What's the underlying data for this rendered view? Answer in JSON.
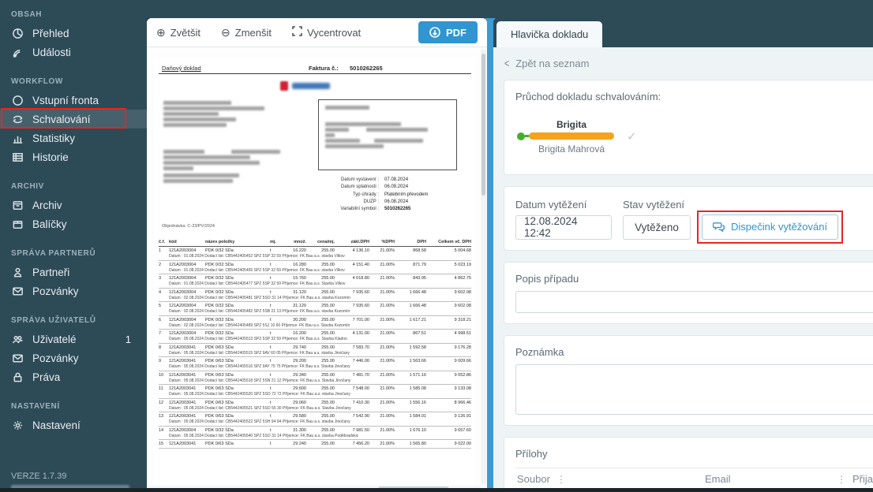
{
  "icons": {
    "check": "✓",
    "dots": "⋮",
    "back_chevron": "<",
    "zoom_in": "⊕",
    "zoom_out": "⊖"
  },
  "colors": {
    "sidebar_bg": "#2d4a57",
    "accent_blue": "#3095d1",
    "annotation_red": "#e8251f",
    "step_orange": "#f6a21d",
    "step_green": "#43b02a",
    "splitter_blue": "#3f9ad2"
  },
  "sidebar": {
    "version": "VERZE 1.7.39",
    "sections": [
      {
        "label": "OBSAH",
        "items": [
          {
            "label": "Přehled",
            "icon": "pie-chart"
          },
          {
            "label": "Události",
            "icon": "broadcast"
          }
        ]
      },
      {
        "label": "WORKFLOW",
        "items": [
          {
            "label": "Vstupní fronta",
            "icon": "circle"
          },
          {
            "label": "Schvalování",
            "icon": "approval",
            "selected": true
          },
          {
            "label": "Statistiky",
            "icon": "bar-chart"
          },
          {
            "label": "Historie",
            "icon": "table"
          }
        ]
      },
      {
        "label": "ARCHIV",
        "items": [
          {
            "label": "Archiv",
            "icon": "archive"
          },
          {
            "label": "Balíčky",
            "icon": "package"
          }
        ]
      },
      {
        "label": "SPRÁVA PARTNERŮ",
        "items": [
          {
            "label": "Partneři",
            "icon": "person"
          },
          {
            "label": "Pozvánky",
            "icon": "mail"
          }
        ]
      },
      {
        "label": "SPRÁVA UŽIVATELŮ",
        "items": [
          {
            "label": "Uživatelé",
            "icon": "users",
            "badge": "1"
          },
          {
            "label": "Pozvánky",
            "icon": "mail"
          },
          {
            "label": "Práva",
            "icon": "lock"
          }
        ]
      },
      {
        "label": "NASTAVENÍ",
        "items": [
          {
            "label": "Nastavení",
            "icon": "gear"
          }
        ]
      }
    ]
  },
  "viewer": {
    "toolbar": {
      "zoom_in": "Zvětšit",
      "zoom_out": "Zmenšit",
      "center": "Vycentrovat",
      "pdf": "PDF"
    }
  },
  "document": {
    "title": "Daňový doklad",
    "invoice_label": "Faktura č.:",
    "invoice_number": "5010262265",
    "order_line": "Objednávka: C-23/PV/2024",
    "meta": [
      {
        "label": "Datum vystavení :",
        "value": "07.08.2024"
      },
      {
        "label": "Datum splatnosti :",
        "value": "06.09.2024"
      },
      {
        "label": "Typ úhrady :",
        "value": "Platebním převodem"
      },
      {
        "label": "DUZP :",
        "value": "06.08.2024"
      },
      {
        "label": "Variabilní symbol :",
        "value": "5010262265"
      }
    ],
    "table": {
      "headers": [
        "č.ř.",
        "kód",
        "název položky",
        "mj.",
        "množ.",
        "cena/mj.",
        "zákl.DPH",
        "%DPH",
        "DPH",
        "Celkem vč. DPH"
      ],
      "rows": [
        {
          "c": [
            "1",
            "121A2003004",
            "PDK 0/32 ŠDa",
            "t",
            "16.220",
            "255.00",
            "4 136.10",
            "21.00%",
            "868.58",
            "5 004.68"
          ],
          "d": "Datum : 01.08.2024   Dodací list: CB5442405452  SPZ 5SP 32 59   Příjemce:   FK Bau  a.s. stavba Vilkov"
        },
        {
          "c": [
            "2",
            "121A2003004",
            "PDK 0/32 ŠDa",
            "t",
            "16.280",
            "255.00",
            "4 151.40",
            "21.00%",
            "871.79",
            "5 023.19"
          ],
          "d": "Datum : 01.08.2024   Dodací list: CB5442405455  SPZ 5SP 32 59   Příjemce:   FK Bau  a.s. stavba Vilkov"
        },
        {
          "c": [
            "3",
            "121A2003004",
            "PDK 0/32 ŠDa",
            "t",
            "15.760",
            "255.00",
            "4 018.80",
            "21.00%",
            "843.95",
            "4 862.75"
          ],
          "d": "Datum : 01.08.2024   Dodací list: CB5442405477  SPZ 5SP 32 59   Příjemce:   FK Bau  a.s. Stavba Vilkov"
        },
        {
          "c": [
            "4",
            "121A2003004",
            "PDK 0/32 ŠDa",
            "t",
            "31.120",
            "255.00",
            "7 935.60",
            "21.00%",
            "1 666.48",
            "9 602.08"
          ],
          "d": "Datum : 02.08.2024   Dodací list: CB5442405481  SPZ 5SO 31 14   Příjemce:   FK Bau  a.s. stavba Kozomín"
        },
        {
          "c": [
            "5",
            "121A2003004",
            "PDK 0/32 ŠDa",
            "t",
            "31.120",
            "255.00",
            "7 935.60",
            "21.00%",
            "1 666.48",
            "9 602.08"
          ],
          "d": "Datum : 02.08.2024   Dodací list: CB5442405482  SPZ 5SB 21 13   Příjemce:   FK Bau  a.s. stavba Kozomín"
        },
        {
          "c": [
            "6",
            "121A2003004",
            "PDK 0/32 ŠDa",
            "t",
            "30.200",
            "255.00",
            "7 701.00",
            "21.00%",
            "1 617.21",
            "9 318.21"
          ],
          "d": "Datum : 02.08.2024   Dodací list: CB5442405489  SPZ 5SJ 10 60   Příjemce:   FK Bau  a.s. Stavba Kozomín"
        },
        {
          "c": [
            "7",
            "121A2003004",
            "PDK 0/32 ŠDa",
            "t",
            "16.200",
            "255.00",
            "4 131.00",
            "21.00%",
            "867.51",
            "4 998.51"
          ],
          "d": "Datum : 05.08.2024   Dodací list: CB5442405513  SPZ 5SP 32 59   Příjemce:   FK Bau  a.s. Stavba Kladno"
        },
        {
          "c": [
            "8",
            "121A2003041",
            "PDK 0/63 ŠDa",
            "t",
            "29.740",
            "255.00",
            "7 583.70",
            "21.00%",
            "1 592.58",
            "9 176.28"
          ],
          "d": "Datum : 05.08.2024   Dodací list: CB5442405515  SPZ 9AV 60 05   Příjemce:   FK Bau  a.s. stavba Jinočany"
        },
        {
          "c": [
            "9",
            "121A2003041",
            "PDK 0/63 ŠDa",
            "t",
            "29.200",
            "255.00",
            "7 446.00",
            "21.00%",
            "1 563.66",
            "9 009.66"
          ],
          "d": "Datum : 05.08.2024   Dodací list: CB5442405516  SPZ 9AY 75 75   Příjemce:   FK Bau  a.s. Stavba Jinočany"
        },
        {
          "c": [
            "10",
            "121A2003041",
            "PDK 0/63 ŠDa",
            "t",
            "29.340",
            "255.00",
            "7 481.70",
            "21.00%",
            "1 571.16",
            "9 052.86"
          ],
          "d": "Datum : 05.08.2024   Dodací list: CB5442405518  SPZ 5SN 21 12   Příjemce:   FK Bau  a.s. Stavba Jinočany"
        },
        {
          "c": [
            "11",
            "121A2003041",
            "PDK 0/63 ŠDa",
            "t",
            "29.600",
            "255.00",
            "7 548.00",
            "21.00%",
            "1 585.08",
            "9 133.08"
          ],
          "d": "Datum : 05.08.2024   Dodací list: CB5442405520  SPZ 5SO 72 72   Příjemce:   FK Bau  a.s. stavba Jinočany"
        },
        {
          "c": [
            "12",
            "121A2003041",
            "PDK 0/63 ŠDa",
            "t",
            "29.060",
            "255.00",
            "7 410.30",
            "21.00%",
            "1 556.16",
            "8 966.46"
          ],
          "d": "Datum : 05.08.2024   Dodací list: CB5442405521  SPZ 5SO 55 30   Příjemce:   FK Bau  a.s. Stavba Jinočany"
        },
        {
          "c": [
            "13",
            "121A2003041",
            "PDK 0/63 ŠDa",
            "t",
            "29.580",
            "255.00",
            "7 542.90",
            "21.00%",
            "1 584.01",
            "9 126.91"
          ],
          "d": "Datum : 05.08.2024   Dodací list: CB5442405522  SPZ 5SH 94 94   Příjemce:   FK Bau  a.s. stavba Jinočany"
        },
        {
          "c": [
            "14",
            "121A2003004",
            "PDK 0/32 ŠDa",
            "t",
            "31.300",
            "255.00",
            "7 981.50",
            "21.00%",
            "1 676.10",
            "9 657.60"
          ],
          "d": "Datum : 05.08.2024   Dodací list: CB5442405540  SPZ 5SO 31 14   Příjemce:   FK Bau  a.s. stavba Poděbradská"
        },
        {
          "c": [
            "15",
            "121A2003041",
            "PDK 0/63 ŠDa",
            "t",
            "29.240",
            "255.00",
            "7 456.20",
            "21.00%",
            "1 565.80",
            "9 022.00"
          ],
          "d": ""
        }
      ]
    }
  },
  "panel": {
    "tab": "Hlavička dokladu",
    "back": "Zpět na seznam",
    "approval": {
      "title": "Průchod dokladu schvalováním:",
      "step_name": "Brigita",
      "step_user": "Brigita Mahrová"
    },
    "extraction": {
      "date_label": "Datum vytěžení",
      "date_value": "12.08.2024 12:42",
      "state_label": "Stav vytěžení",
      "state_value": "Vytěženo",
      "dispatch_button": "Dispečink vytěžování"
    },
    "case_label": "Popis případu",
    "note_label": "Poznámka",
    "attachments": {
      "title": "Přílohy",
      "col_file": "Soubor",
      "col_email": "Email",
      "col_received": "Přijato"
    }
  }
}
